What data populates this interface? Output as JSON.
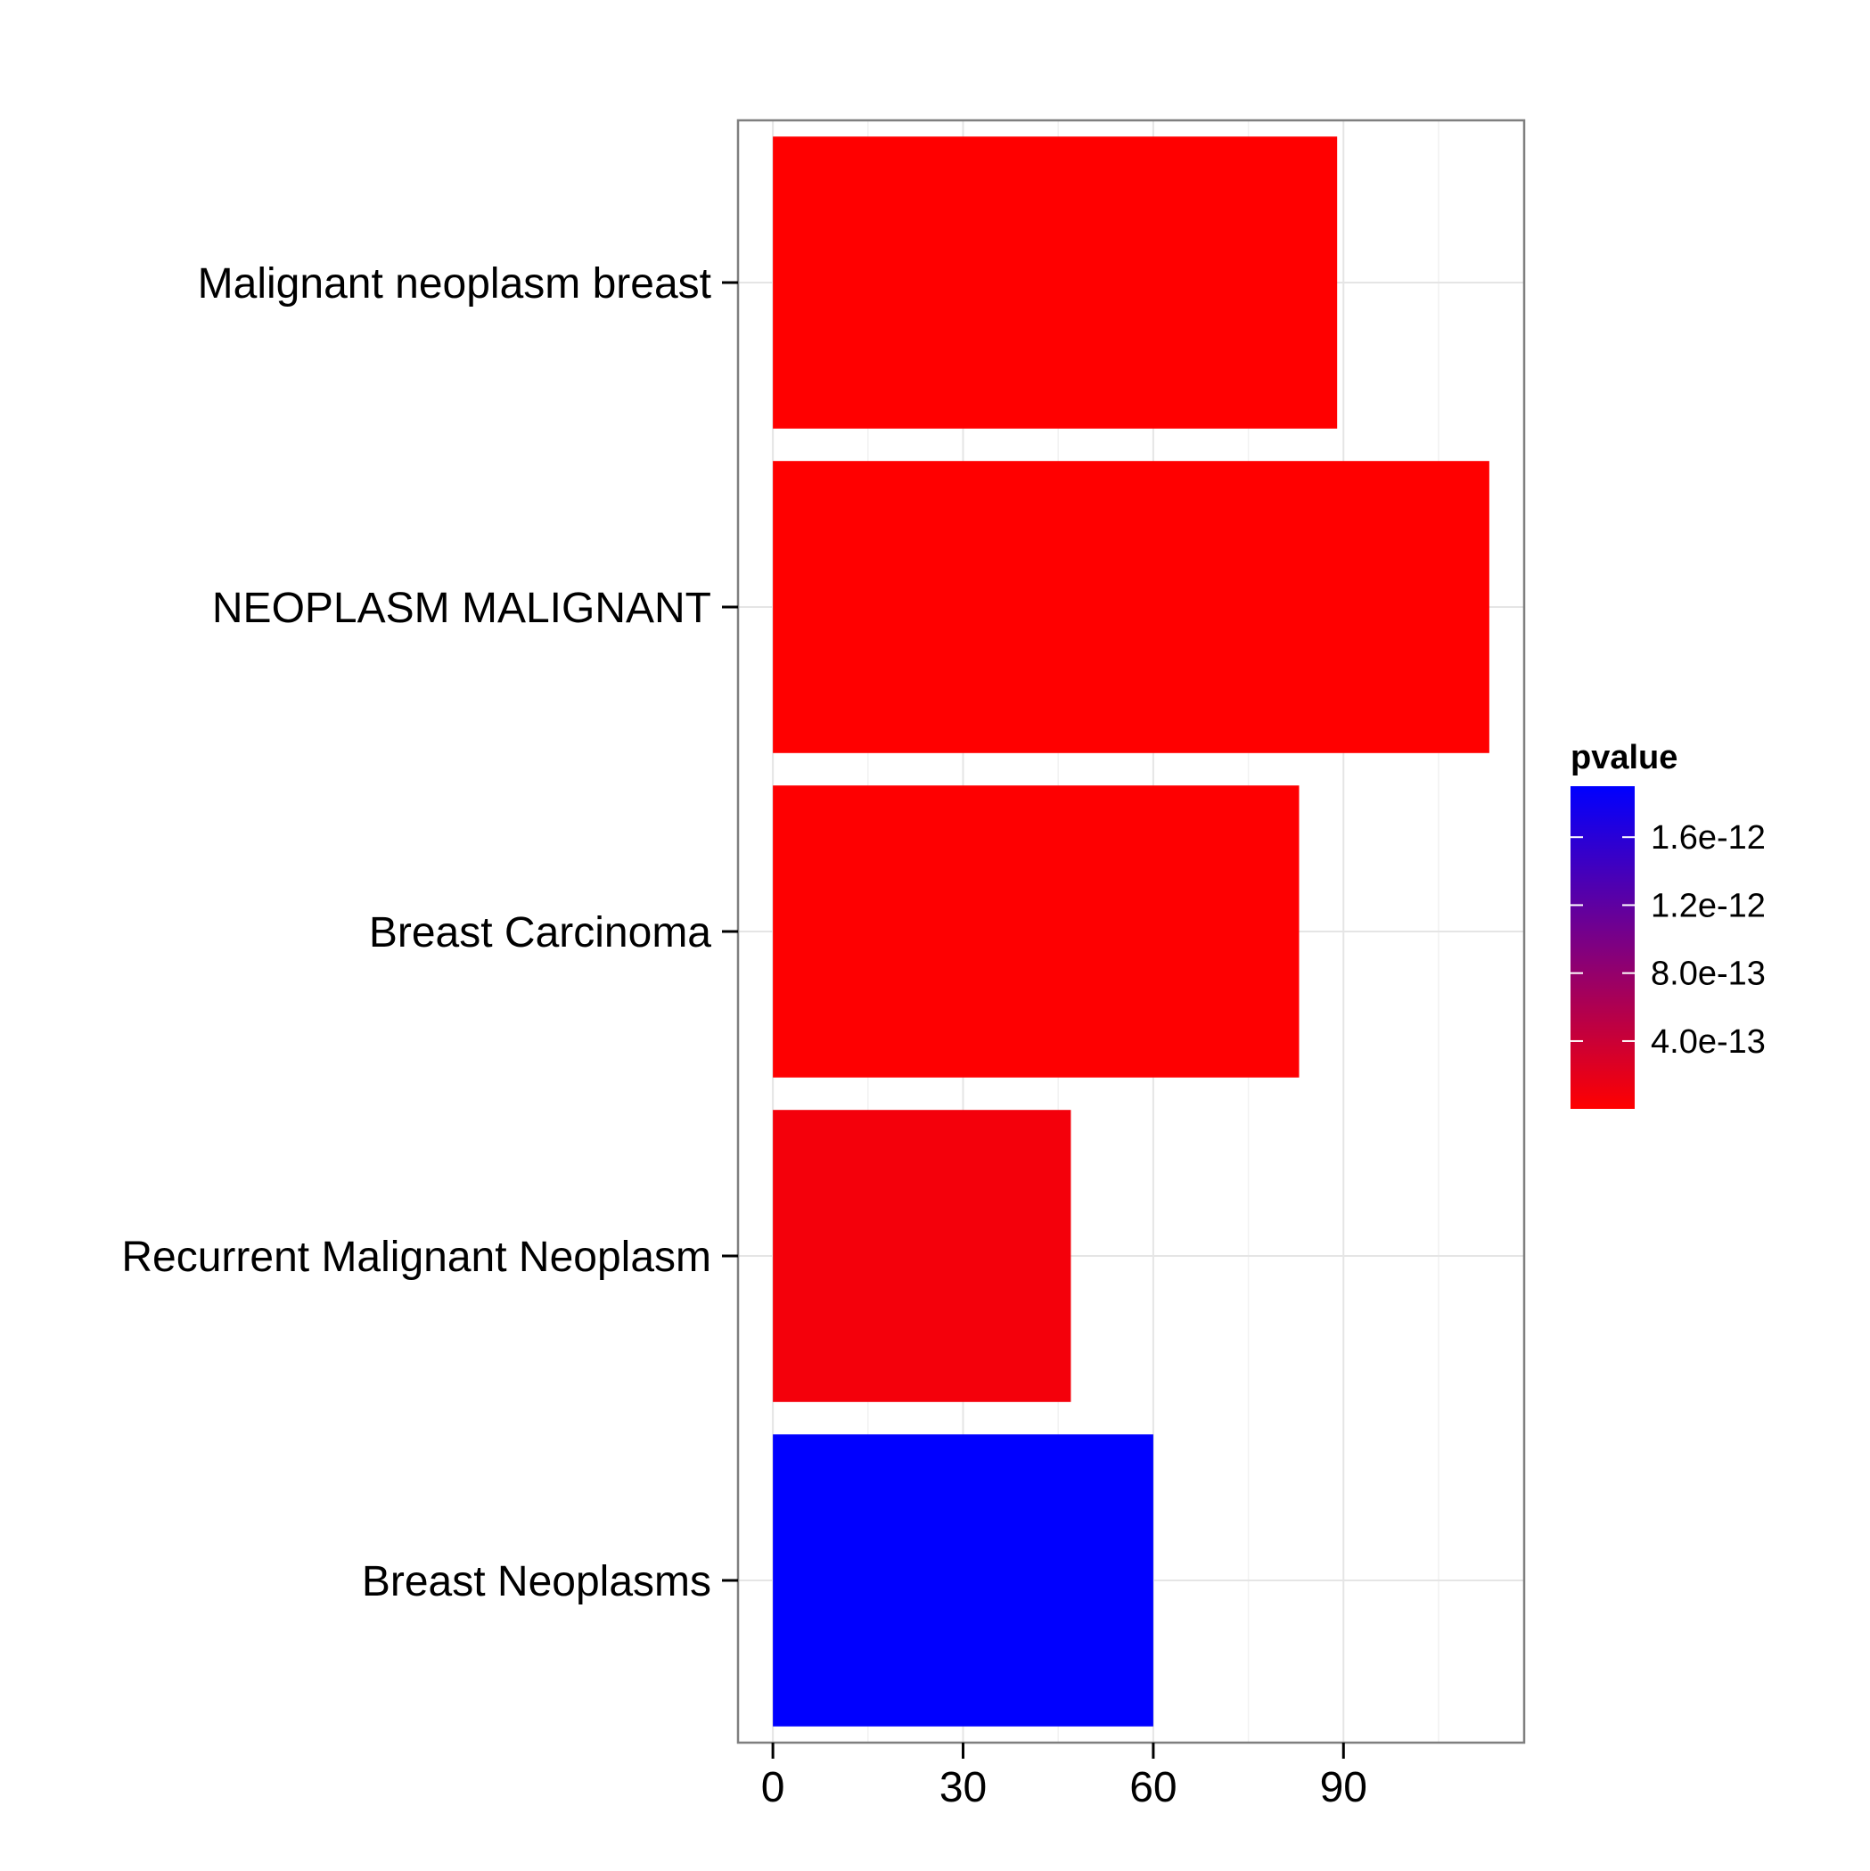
{
  "chart_data": {
    "type": "bar",
    "orientation": "horizontal",
    "categories": [
      "Malignant neoplasm breast",
      "NEOPLASM MALIGNANT",
      "Breast Carcinoma",
      "Recurrent Malignant Neoplasm",
      "Breast Neoplasms"
    ],
    "values": [
      89,
      113,
      83,
      47,
      60
    ],
    "pvalue": [
      1e-15,
      1e-15,
      5e-15,
      8e-14,
      1.9e-12
    ],
    "xlim": [
      -5.5,
      118.5
    ],
    "xticks": [
      0,
      30,
      60,
      90
    ],
    "grid": true,
    "legend": {
      "title": "pvalue",
      "position": "right",
      "type": "colorbar",
      "range": [
        1e-15,
        1.9e-12
      ],
      "breaks": [
        4e-13,
        8e-13,
        1.2e-12,
        1.6e-12
      ],
      "labels": [
        "4.0e-13",
        "8.0e-13",
        "1.2e-12",
        "1.6e-12"
      ],
      "low_color": "#FF0000",
      "high_color": "#0000FF"
    }
  }
}
